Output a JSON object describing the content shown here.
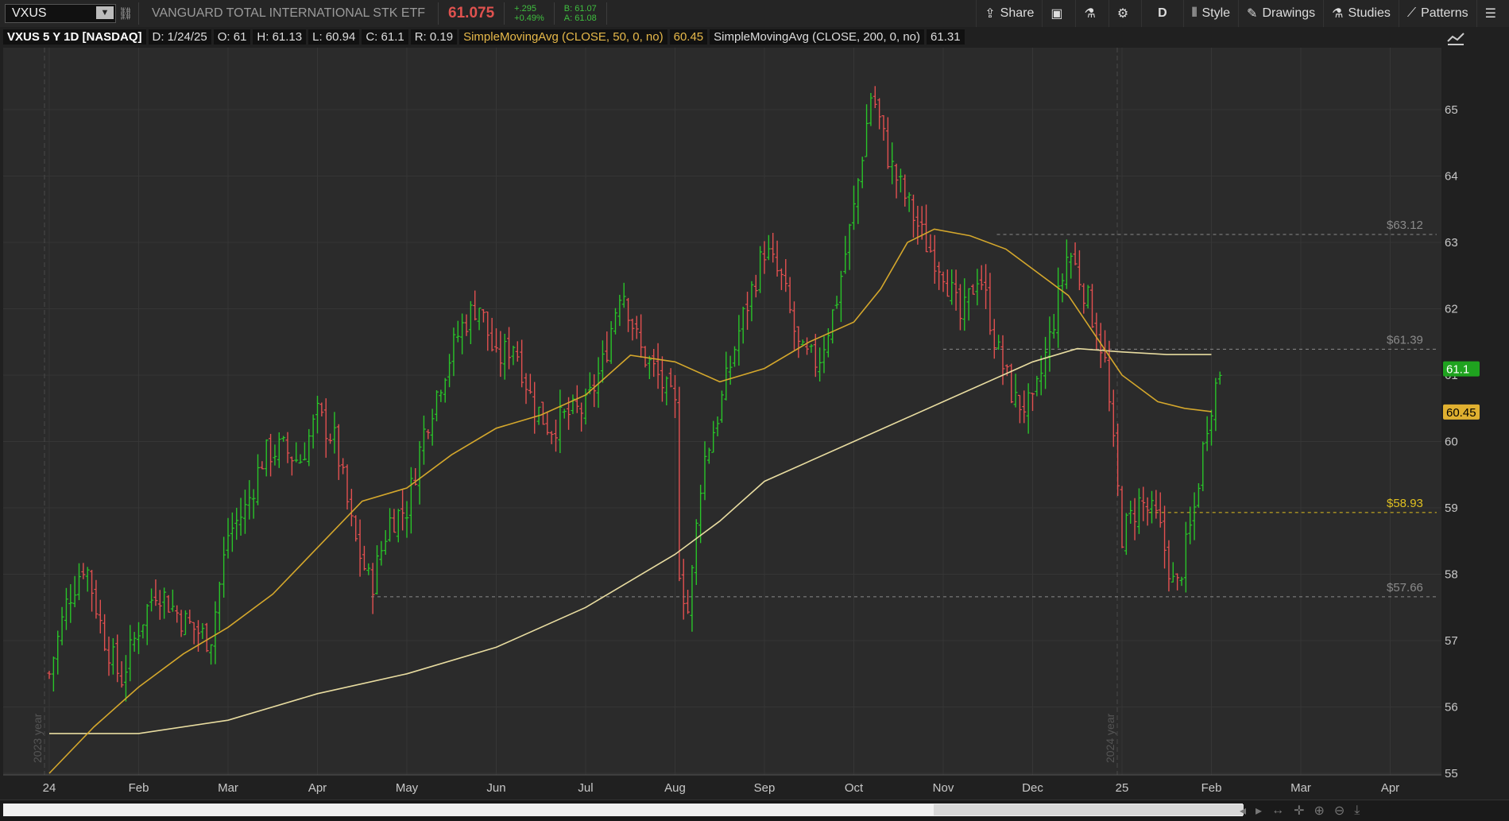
{
  "toolbar": {
    "symbol": "VXUS",
    "description": "VANGUARD TOTAL INTERNATIONAL STK ETF",
    "last": "61.075",
    "change": "+.295",
    "change_pct": "+0.49%",
    "bid": "B: 61.07",
    "ask": "A: 61.08",
    "share_label": "Share",
    "aggregation_label": "D",
    "style_label": "Style",
    "drawings_label": "Drawings",
    "studies_label": "Studies",
    "patterns_label": "Patterns"
  },
  "infobar": {
    "title": "VXUS 5 Y 1D [NASDAQ]",
    "date": "D: 1/24/25",
    "open": "O: 61",
    "high": "H: 61.13",
    "low": "L: 60.94",
    "close": "C: 61.1",
    "range": "R: 0.19",
    "sma50_label": "SimpleMovingAvg (CLOSE, 50, 0, no)",
    "sma50_value": "60.45",
    "sma200_label": "SimpleMovingAvg (CLOSE, 200, 0, no)",
    "sma200_value": "61.31"
  },
  "chart_data": {
    "type": "candlestick-ohlc",
    "ylim": [
      55,
      66
    ],
    "y_ticks": [
      "55",
      "56",
      "57",
      "58",
      "59",
      "60",
      "61",
      "62",
      "63",
      "64",
      "65"
    ],
    "x_ticks": [
      {
        "label": "24",
        "month": 0
      },
      {
        "label": "Feb",
        "month": 1
      },
      {
        "label": "Mar",
        "month": 2
      },
      {
        "label": "Apr",
        "month": 3
      },
      {
        "label": "May",
        "month": 4
      },
      {
        "label": "Jun",
        "month": 5
      },
      {
        "label": "Jul",
        "month": 6
      },
      {
        "label": "Aug",
        "month": 7
      },
      {
        "label": "Sep",
        "month": 8
      },
      {
        "label": "Oct",
        "month": 9
      },
      {
        "label": "Nov",
        "month": 10
      },
      {
        "label": "Dec",
        "month": 11
      },
      {
        "label": "25",
        "month": 12
      },
      {
        "label": "Feb",
        "month": 13
      },
      {
        "label": "Mar",
        "month": 14
      },
      {
        "label": "Apr",
        "month": 15
      }
    ],
    "year_markers": [
      {
        "label": "2023 year",
        "month": 0
      },
      {
        "label": "2024 year",
        "month": 12
      }
    ],
    "price_levels": [
      {
        "label": "$63.12",
        "value": 63.12,
        "color": "#8a8a8a",
        "from_month": 10.6
      },
      {
        "label": "$61.39",
        "value": 61.39,
        "color": "#8a8a8a",
        "from_month": 10.0
      },
      {
        "label": "$58.93",
        "value": 58.93,
        "color": "#e0c020",
        "from_month": 12.3
      },
      {
        "label": "$57.66",
        "value": 57.66,
        "color": "#8a8a8a",
        "from_month": 3.6
      }
    ],
    "price_badges": [
      {
        "label": "61.1",
        "value": 61.1,
        "bg": "#1fa31f",
        "fg": "#ffffff"
      },
      {
        "label": "60.45",
        "value": 60.45,
        "bg": "#e0b030",
        "fg": "#000000"
      }
    ],
    "close_path": [
      [
        0,
        56.5
      ],
      [
        0.2,
        57.6
      ],
      [
        0.4,
        58.2
      ],
      [
        0.6,
        57.1
      ],
      [
        0.8,
        56.4
      ],
      [
        1.0,
        57.2
      ],
      [
        1.2,
        57.8
      ],
      [
        1.5,
        57.3
      ],
      [
        1.8,
        57.0
      ],
      [
        2.0,
        58.6
      ],
      [
        2.2,
        59.0
      ],
      [
        2.4,
        59.8
      ],
      [
        2.6,
        59.9
      ],
      [
        2.8,
        59.7
      ],
      [
        3.0,
        60.4
      ],
      [
        3.2,
        60.0
      ],
      [
        3.4,
        58.6
      ],
      [
        3.6,
        57.8
      ],
      [
        3.8,
        58.8
      ],
      [
        4.0,
        59.0
      ],
      [
        4.2,
        60.2
      ],
      [
        4.4,
        61.0
      ],
      [
        4.6,
        61.7
      ],
      [
        4.8,
        62.1
      ],
      [
        5.0,
        61.2
      ],
      [
        5.2,
        61.5
      ],
      [
        5.4,
        60.6
      ],
      [
        5.6,
        60.2
      ],
      [
        5.8,
        60.4
      ],
      [
        6.0,
        60.5
      ],
      [
        6.2,
        61.2
      ],
      [
        6.4,
        62.4
      ],
      [
        6.6,
        61.4
      ],
      [
        6.8,
        61.0
      ],
      [
        7.0,
        60.5
      ],
      [
        7.05,
        58.0
      ],
      [
        7.15,
        57.4
      ],
      [
        7.3,
        59.6
      ],
      [
        7.5,
        60.5
      ],
      [
        7.7,
        61.6
      ],
      [
        8.0,
        62.9
      ],
      [
        8.2,
        62.4
      ],
      [
        8.4,
        61.3
      ],
      [
        8.6,
        61.2
      ],
      [
        8.8,
        62.1
      ],
      [
        9.0,
        63.5
      ],
      [
        9.2,
        65.3
      ],
      [
        9.4,
        64.2
      ],
      [
        9.6,
        63.6
      ],
      [
        9.8,
        63.0
      ],
      [
        10.0,
        62.6
      ],
      [
        10.2,
        61.8
      ],
      [
        10.4,
        62.6
      ],
      [
        10.6,
        61.4
      ],
      [
        10.8,
        60.6
      ],
      [
        11.0,
        60.5
      ],
      [
        11.2,
        61.6
      ],
      [
        11.4,
        62.9
      ],
      [
        11.6,
        62.2
      ],
      [
        11.8,
        61.3
      ],
      [
        12.0,
        58.6
      ],
      [
        12.2,
        59.1
      ],
      [
        12.4,
        58.8
      ],
      [
        12.6,
        57.7
      ],
      [
        12.8,
        58.9
      ],
      [
        12.95,
        60.3
      ],
      [
        13.0,
        60.6
      ],
      [
        13.1,
        61.1
      ]
    ],
    "sma50": [
      [
        0,
        55.0
      ],
      [
        0.5,
        55.7
      ],
      [
        1.0,
        56.3
      ],
      [
        1.5,
        56.8
      ],
      [
        2.0,
        57.2
      ],
      [
        2.5,
        57.7
      ],
      [
        3.0,
        58.4
      ],
      [
        3.5,
        59.1
      ],
      [
        4.0,
        59.3
      ],
      [
        4.5,
        59.8
      ],
      [
        5.0,
        60.2
      ],
      [
        5.5,
        60.4
      ],
      [
        6.0,
        60.7
      ],
      [
        6.5,
        61.3
      ],
      [
        7.0,
        61.2
      ],
      [
        7.5,
        60.9
      ],
      [
        8.0,
        61.1
      ],
      [
        8.5,
        61.5
      ],
      [
        9.0,
        61.8
      ],
      [
        9.3,
        62.3
      ],
      [
        9.6,
        63.0
      ],
      [
        9.9,
        63.2
      ],
      [
        10.3,
        63.1
      ],
      [
        10.7,
        62.9
      ],
      [
        11.0,
        62.6
      ],
      [
        11.4,
        62.2
      ],
      [
        11.7,
        61.6
      ],
      [
        12.0,
        61.0
      ],
      [
        12.4,
        60.6
      ],
      [
        12.7,
        60.5
      ],
      [
        13.0,
        60.45
      ]
    ],
    "sma200": [
      [
        0,
        55.6
      ],
      [
        1,
        55.6
      ],
      [
        2,
        55.8
      ],
      [
        3,
        56.2
      ],
      [
        4,
        56.5
      ],
      [
        5,
        56.9
      ],
      [
        6,
        57.5
      ],
      [
        7,
        58.3
      ],
      [
        7.5,
        58.8
      ],
      [
        8,
        59.4
      ],
      [
        9,
        60.0
      ],
      [
        10,
        60.6
      ],
      [
        11,
        61.2
      ],
      [
        11.5,
        61.4
      ],
      [
        12,
        61.35
      ],
      [
        12.5,
        61.31
      ],
      [
        13.0,
        61.31
      ]
    ]
  }
}
